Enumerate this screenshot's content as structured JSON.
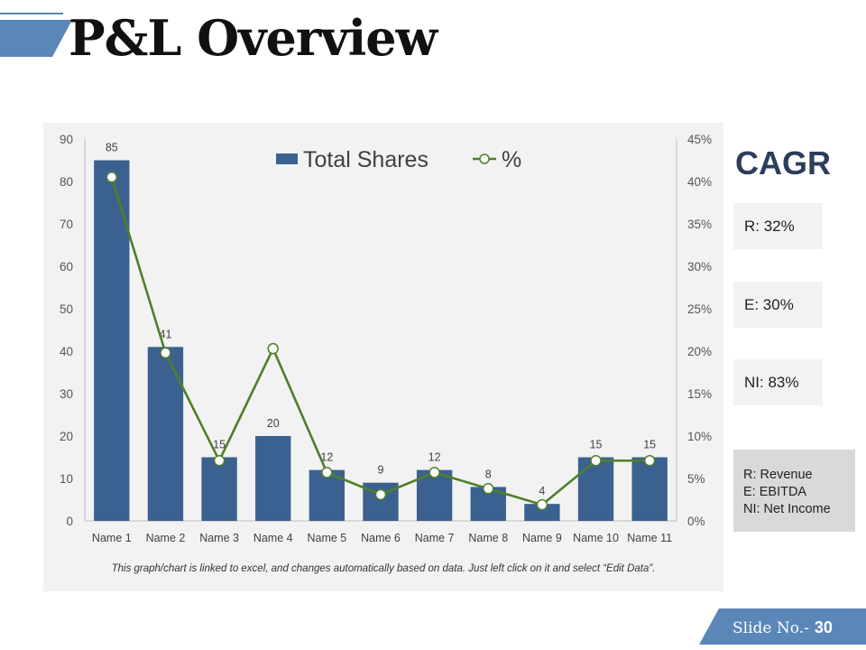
{
  "slide": {
    "title": "P&L Overview",
    "slide_label": "Slide No.-",
    "slide_number": "30"
  },
  "chart_data": {
    "type": "bar",
    "categories": [
      "Name 1",
      "Name 2",
      "Name 3",
      "Name 4",
      "Name 5",
      "Name 6",
      "Name 7",
      "Name 8",
      "Name 9",
      "Name 10",
      "Name 11"
    ],
    "series": [
      {
        "name": "Total Shares",
        "type": "bar",
        "axis": "left",
        "color": "#3b6190",
        "values": [
          85,
          41,
          15,
          20,
          12,
          9,
          12,
          8,
          4,
          15,
          15
        ]
      },
      {
        "name": "%",
        "type": "line",
        "axis": "right",
        "color": "#4f7f2a",
        "values": [
          40.5,
          19.8,
          7.1,
          20.3,
          5.7,
          3.1,
          5.7,
          3.8,
          1.9,
          7.1,
          7.1
        ]
      }
    ],
    "y_left": {
      "min": 0,
      "max": 90,
      "ticks": [
        "0",
        "10",
        "20",
        "30",
        "40",
        "50",
        "60",
        "70",
        "80",
        "90"
      ]
    },
    "y_right": {
      "min": 0,
      "max": 45,
      "ticks": [
        "0%",
        "5%",
        "10%",
        "15%",
        "20%",
        "25%",
        "30%",
        "35%",
        "40%",
        "45%"
      ]
    },
    "legend_position": "top-center",
    "grid": false,
    "note": "This graph/chart is linked to excel, and changes automatically based on data. Just left click on it and select “Edit Data”."
  },
  "cagr": {
    "heading": "CAGR",
    "items": [
      {
        "label": "R: 32%"
      },
      {
        "label": "E: 30%"
      },
      {
        "label": "NI: 83%"
      }
    ],
    "legend": [
      "R: Revenue",
      "E: EBITDA",
      "NI: Net Income"
    ]
  }
}
